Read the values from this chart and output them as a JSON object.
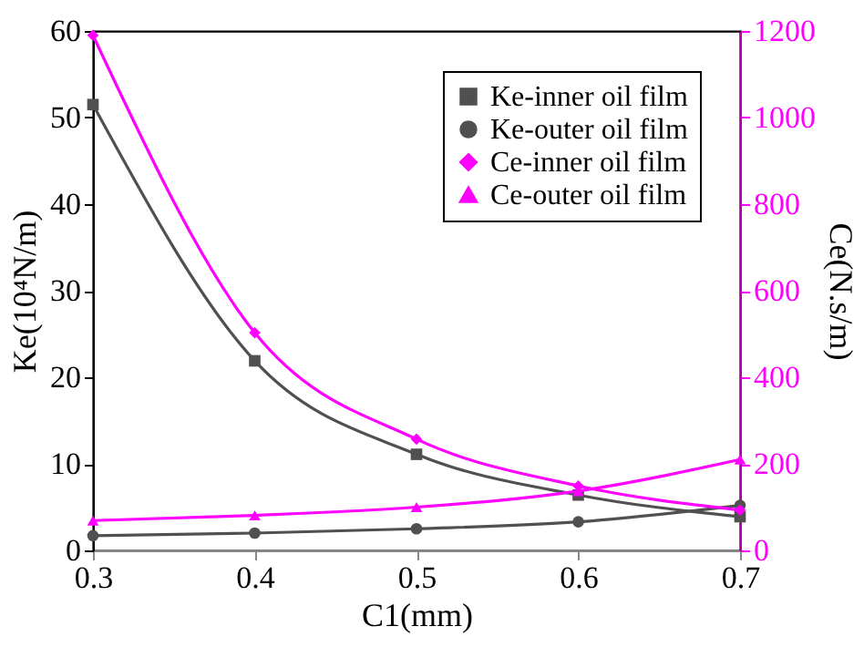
{
  "chart_data": {
    "type": "line",
    "xlabel": "C1(mm)",
    "ylabel": "Ke(10⁴N/m)",
    "y2label": "Ce(N.s/m)",
    "x": [
      0.3,
      0.4,
      0.5,
      0.6,
      0.7
    ],
    "xlim": [
      0.3,
      0.7
    ],
    "xticks": [
      0.3,
      0.4,
      0.5,
      0.6,
      0.7
    ],
    "ylim": [
      0,
      60
    ],
    "yticks": [
      0,
      10,
      20,
      30,
      40,
      50,
      60
    ],
    "y2lim": [
      0,
      1200
    ],
    "y2ticks": [
      0,
      200,
      400,
      600,
      800,
      1000,
      1200
    ],
    "legend": "top right",
    "grid": false,
    "line_style": "solid",
    "series": [
      {
        "name": "Ke-inner oil film",
        "color": "#505050",
        "marker": "square",
        "values": [
          51.5,
          21.9,
          11.1,
          6.4,
          3.9
        ]
      },
      {
        "name": "Ke-outer oil film",
        "color": "#505050",
        "marker": "circle",
        "values": [
          1.7,
          2.0,
          2.5,
          3.3,
          5.2
        ]
      },
      {
        "name": "Ce-inner oil film",
        "color": "#ff00ff",
        "marker": "diamond",
        "axis": "y2",
        "values": [
          1190,
          503,
          257,
          149,
          93
        ]
      },
      {
        "name": "Ce-outer oil film",
        "color": "#ff00ff",
        "marker": "triangle",
        "axis": "y2",
        "values": [
          69,
          81,
          100,
          137,
          210
        ]
      }
    ]
  }
}
